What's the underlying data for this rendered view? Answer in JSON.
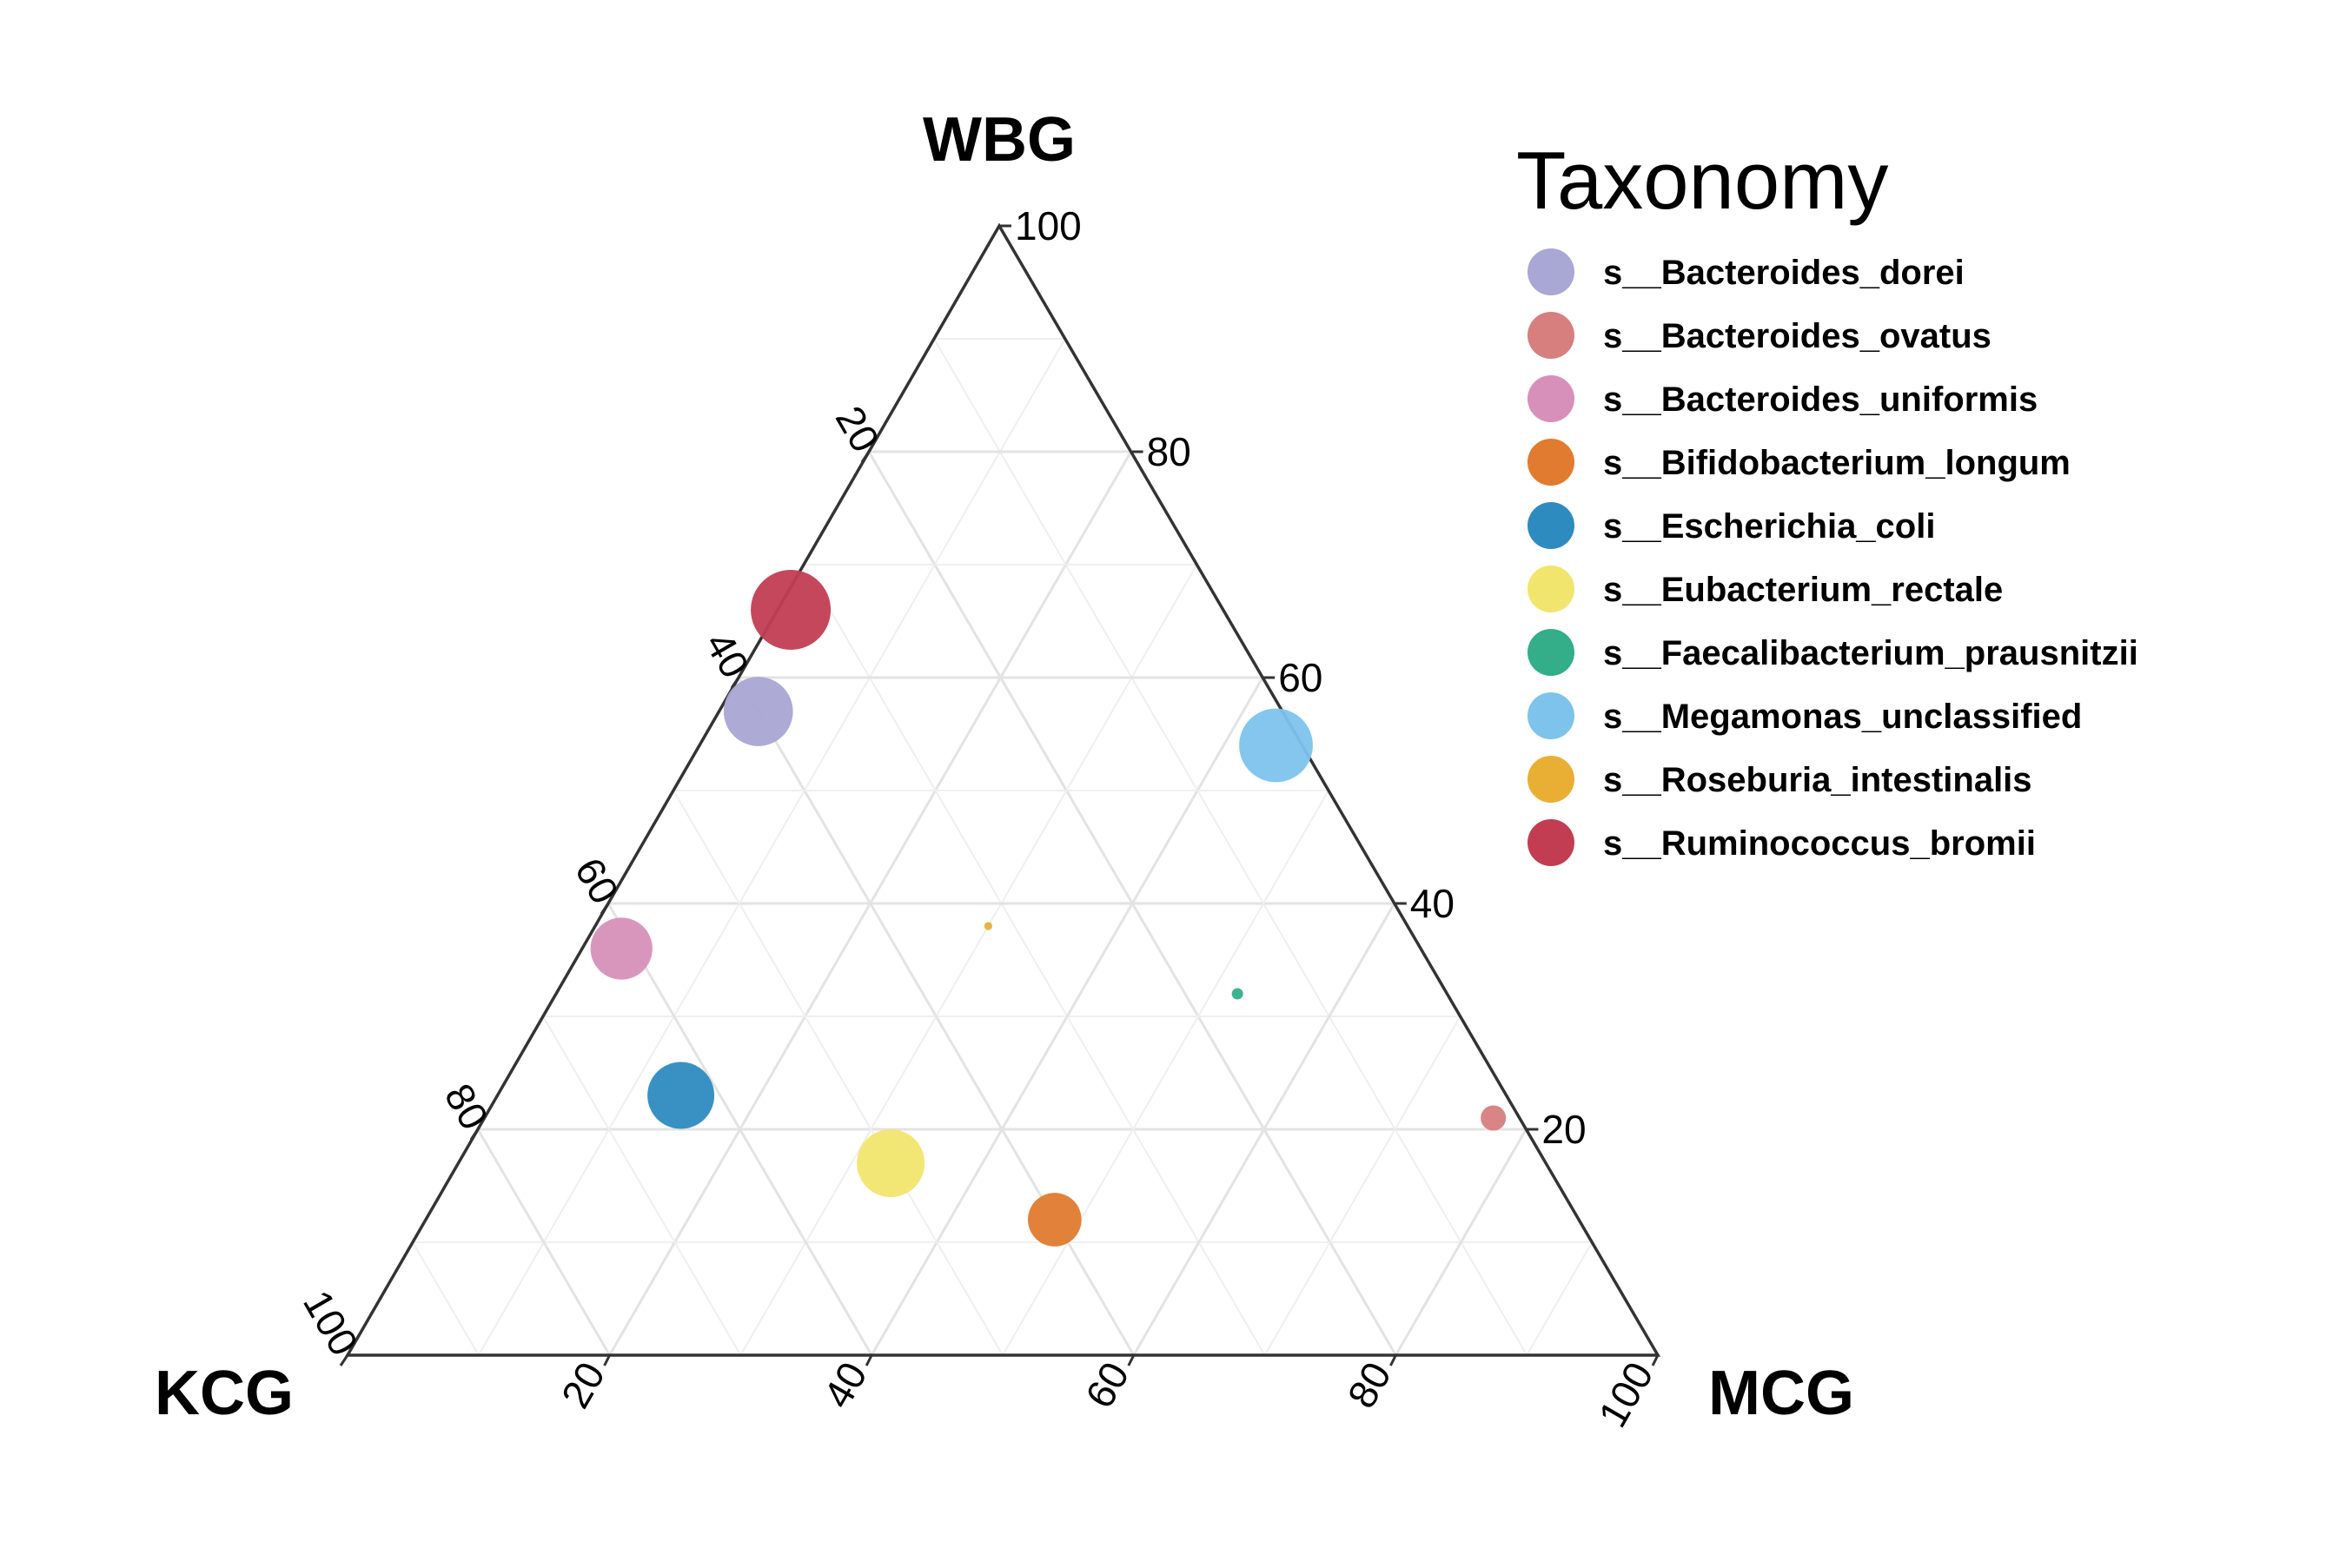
{
  "chart_data": {
    "type": "ternary-scatter",
    "axes": {
      "top": {
        "label": "WBG",
        "ticks": [
          "20",
          "40",
          "60",
          "80",
          "100"
        ]
      },
      "left": {
        "label": "KCG",
        "ticks": [
          "20",
          "40",
          "60",
          "80",
          "100"
        ]
      },
      "right": {
        "label": "MCG",
        "ticks": [
          "20",
          "40",
          "60",
          "80",
          "100"
        ]
      }
    },
    "legend_title": "Taxonomy",
    "series": [
      {
        "name": "s__Bacteroides_dorei",
        "color": "#a9a7d3",
        "WBG": 57,
        "KCG": 40,
        "MCG": 3,
        "size": 0.75
      },
      {
        "name": "s__Bacteroides_ovatus",
        "color": "#d77e7e",
        "WBG": 21,
        "KCG": 2,
        "MCG": 77,
        "size": 0.1
      },
      {
        "name": "s__Bacteroides_uniformis",
        "color": "#d790b9",
        "WBG": 36,
        "KCG": 61,
        "MCG": 3,
        "size": 0.6
      },
      {
        "name": "s__Bifidobacterium_longum",
        "color": "#e07b2f",
        "WBG": 12,
        "KCG": 40,
        "MCG": 48,
        "size": 0.45
      },
      {
        "name": "s__Escherichia_coli",
        "color": "#2e8bc0",
        "WBG": 23,
        "KCG": 63,
        "MCG": 14,
        "size": 0.7
      },
      {
        "name": "s__Eubacterium_rectale",
        "color": "#f1e56e",
        "WBG": 17,
        "KCG": 50,
        "MCG": 33,
        "size": 0.72
      },
      {
        "name": "s__Faecalibacterium_prausnitzii",
        "color": "#33ae88",
        "WBG": 32,
        "KCG": 16,
        "MCG": 52,
        "size": 0.02
      },
      {
        "name": "s__Megamonas_unclassified",
        "color": "#7dc3ec",
        "WBG": 54,
        "KCG": 2,
        "MCG": 44,
        "size": 0.85
      },
      {
        "name": "s__Roseburia_intestinalis",
        "color": "#e9af35",
        "WBG": 38,
        "KCG": 32,
        "MCG": 30,
        "size": 0.01
      },
      {
        "name": "s__Ruminococcus_bromii",
        "color": "#c23d52",
        "WBG": 66,
        "KCG": 33,
        "MCG": 1,
        "size": 1.0
      }
    ]
  }
}
